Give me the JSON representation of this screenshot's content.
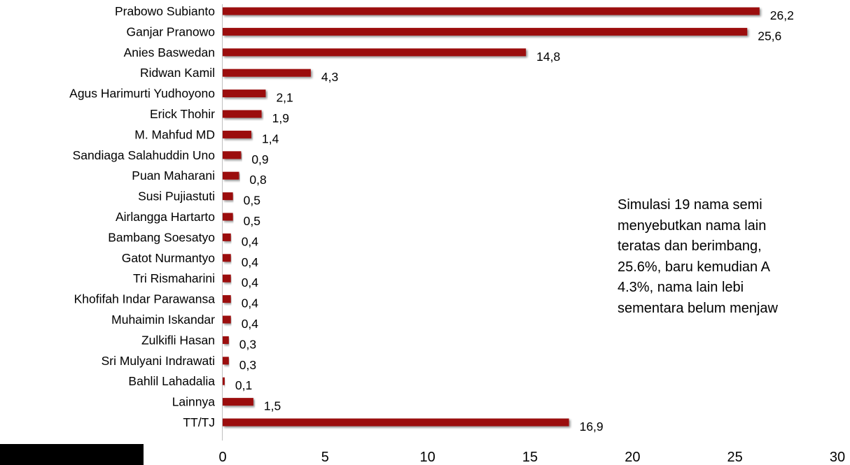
{
  "chart_data": {
    "type": "bar",
    "orientation": "horizontal",
    "categories": [
      "Prabowo Subianto",
      "Ganjar Pranowo",
      "Anies Baswedan",
      "Ridwan Kamil",
      "Agus Harimurti Yudhoyono",
      "Erick Thohir",
      "M. Mahfud MD",
      "Sandiaga Salahuddin Uno",
      "Puan Maharani",
      "Susi Pujiastuti",
      "Airlangga Hartarto",
      "Bambang Soesatyo",
      "Gatot Nurmantyo",
      "Tri Rismaharini",
      "Khofifah Indar Parawansa",
      "Muhaimin Iskandar",
      "Zulkifli Hasan",
      "Sri Mulyani Indrawati",
      "Bahlil Lahadalia",
      "Lainnya",
      "TT/TJ"
    ],
    "values": [
      26.2,
      25.6,
      14.8,
      4.3,
      2.1,
      1.9,
      1.4,
      0.9,
      0.8,
      0.5,
      0.5,
      0.4,
      0.4,
      0.4,
      0.4,
      0.4,
      0.3,
      0.3,
      0.1,
      1.5,
      16.9
    ],
    "value_labels": [
      "26,2",
      "25,6",
      "14,8",
      "4,3",
      "2,1",
      "1,9",
      "1,4",
      "0,9",
      "0,8",
      "0,5",
      "0,5",
      "0,4",
      "0,4",
      "0,4",
      "0,4",
      "0,4",
      "0,3",
      "0,3",
      "0,1",
      "1,5",
      "16,9"
    ],
    "xlim": [
      0,
      30
    ],
    "xticks": [
      0,
      5,
      10,
      15,
      20,
      25,
      30
    ],
    "title": "",
    "xlabel": "",
    "ylabel": "",
    "grid": false,
    "legend": "none",
    "bar_color": "#9b0a0a"
  },
  "note": {
    "lines": [
      "Simulasi 19 nama semi",
      "menyebutkan nama lain",
      "teratas dan berimbang,",
      "25.6%, baru kemudian A",
      "4.3%,  nama  lain  lebi",
      "sementara belum menjaw"
    ]
  }
}
